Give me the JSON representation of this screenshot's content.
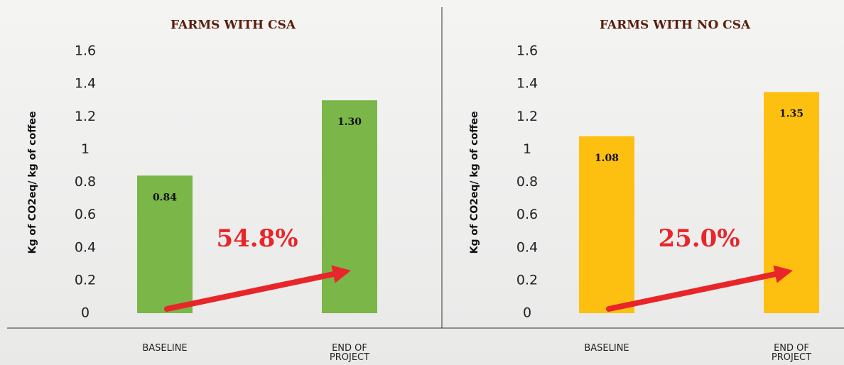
{
  "chart_data": [
    {
      "type": "bar",
      "title": "FARMS WITH CSA",
      "ylabel": "Kg of CO2eq/ kg of coffee",
      "categories": [
        "BASELINE",
        "END OF PROJECT"
      ],
      "values": [
        0.84,
        1.3
      ],
      "value_labels": [
        "0.84",
        "1.30"
      ],
      "color": "#7ab648",
      "ylim": [
        0,
        1.6
      ],
      "yticks": [
        0,
        0.2,
        0.4,
        0.6,
        0.8,
        1,
        1.2,
        1.4,
        1.6
      ],
      "annotation": "54.8%"
    },
    {
      "type": "bar",
      "title": "FARMS WITH NO CSA",
      "ylabel": "Kg of CO2eq/ kg of coffee",
      "categories": [
        "BASELINE",
        "END OF PROJECT"
      ],
      "values": [
        1.08,
        1.35
      ],
      "value_labels": [
        "1.08",
        "1.35"
      ],
      "color": "#fec010",
      "ylim": [
        0,
        1.6
      ],
      "yticks": [
        0,
        0.2,
        0.4,
        0.6,
        0.8,
        1,
        1.2,
        1.4,
        1.6
      ],
      "annotation": "25.0%"
    }
  ]
}
